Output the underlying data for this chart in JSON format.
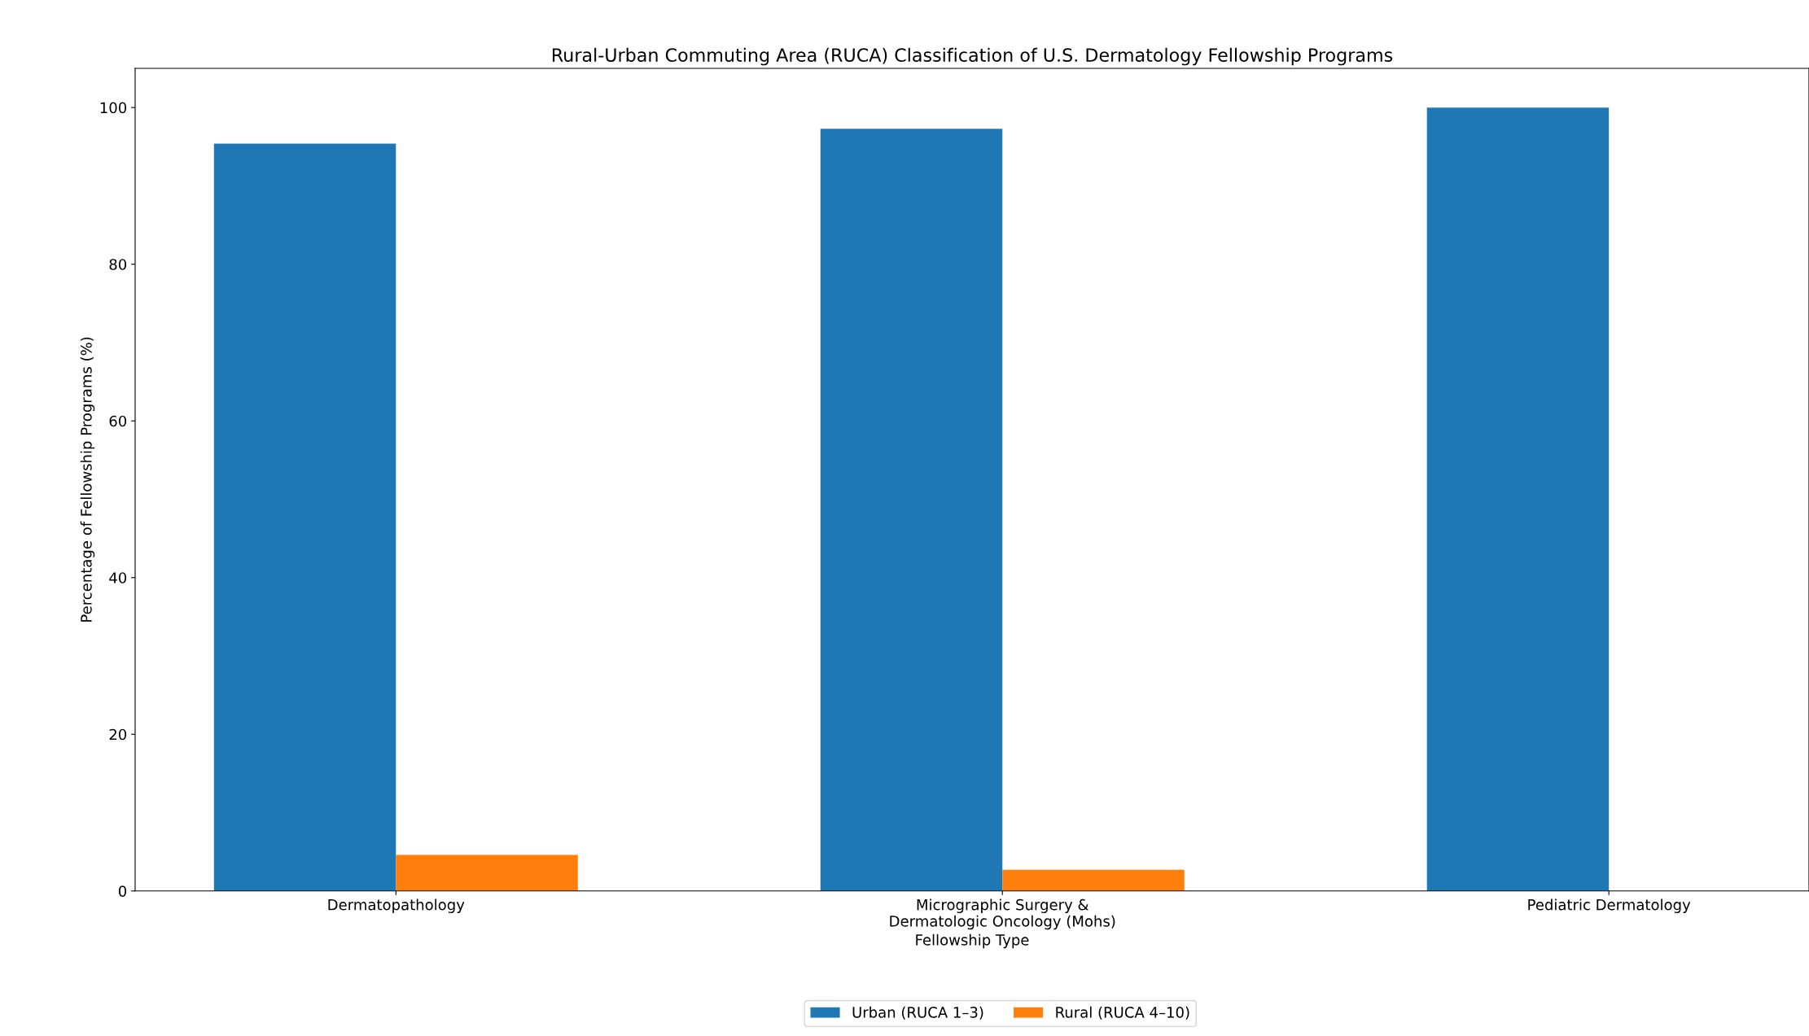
{
  "chart_data": {
    "type": "bar",
    "title": "Rural-Urban Commuting Area (RUCA) Classification of U.S. Dermatology Fellowship Programs",
    "xlabel": "Fellowship Type",
    "ylabel": "Percentage of Fellowship Programs (%)",
    "categories": [
      "Dermatopathology",
      "Micrographic Surgery &\nDermatologic Oncology (Mohs)",
      "Pediatric Dermatology"
    ],
    "series": [
      {
        "name": "Urban (RUCA 1–3)",
        "color": "#1f77b4",
        "values": [
          95.4,
          97.3,
          100
        ]
      },
      {
        "name": "Rural (RUCA 4–10)",
        "color": "#ff7f0e",
        "values": [
          4.6,
          2.7,
          0
        ]
      }
    ],
    "ylim": [
      0,
      105
    ],
    "yticks": [
      0,
      20,
      40,
      60,
      80,
      100
    ],
    "grid": false,
    "legend": "bottom"
  }
}
